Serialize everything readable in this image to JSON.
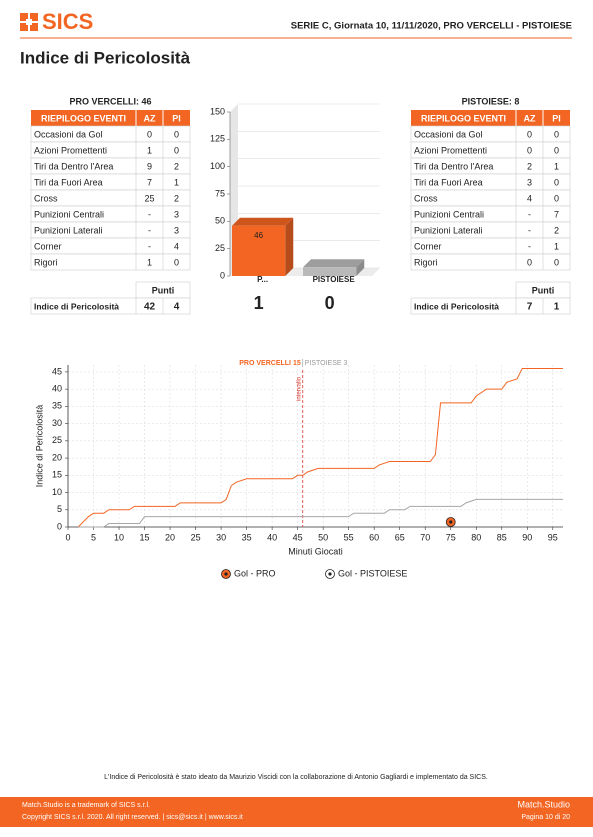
{
  "header": {
    "logo": "SICS",
    "match": "SERIE C, Giornata 10, 11/11/2020, PRO VERCELLI - PISTOIESE"
  },
  "title": "Indice di Pericolosità",
  "tables": [
    {
      "title": "PRO VERCELLI: 46",
      "columns": [
        "RIEPILOGO EVENTI",
        "AZ",
        "PI"
      ],
      "rows": [
        [
          "Occasioni da Gol",
          0,
          0
        ],
        [
          "Azioni Promettenti",
          1,
          0
        ],
        [
          "Tiri da Dentro l'Area",
          9,
          2
        ],
        [
          "Tiri da Fuori Area",
          7,
          1
        ],
        [
          "Cross",
          25,
          2
        ],
        [
          "Punizioni Centrali",
          "-",
          3
        ],
        [
          "Punizioni Laterali",
          "-",
          3
        ],
        [
          "Corner",
          "-",
          4
        ],
        [
          "Rigori",
          1,
          0
        ]
      ],
      "points_header": "Punti",
      "total": [
        "Indice di Pericolosità",
        42,
        4
      ]
    },
    {
      "title": "PISTOIESE: 8",
      "columns": [
        "RIEPILOGO EVENTI",
        "AZ",
        "PI"
      ],
      "rows": [
        [
          "Occasioni da Gol",
          0,
          0
        ],
        [
          "Azioni Promettenti",
          0,
          0
        ],
        [
          "Tiri da Dentro l'Area",
          2,
          1
        ],
        [
          "Tiri da Fuori Area",
          3,
          0
        ],
        [
          "Cross",
          4,
          0
        ],
        [
          "Punizioni Centrali",
          "-",
          7
        ],
        [
          "Punizioni Laterali",
          "-",
          2
        ],
        [
          "Corner",
          "-",
          1
        ],
        [
          "Rigori",
          0,
          0
        ]
      ],
      "points_header": "Punti",
      "total": [
        "Indice di Pericolosità",
        7,
        1
      ]
    }
  ],
  "chart_data": [
    {
      "type": "bar",
      "categories": [
        "P...",
        "PISTOIESE"
      ],
      "values": [
        46,
        8
      ],
      "colors": [
        "#f26522",
        "#b9b9b9"
      ],
      "score": [
        1,
        0
      ],
      "ylim": [
        0,
        150
      ],
      "yticks": [
        0,
        25,
        50,
        75,
        100,
        125,
        150
      ],
      "grid": true
    },
    {
      "type": "line",
      "xlabel": "Minuti Giocati",
      "ylabel": "Indice di Pericolosità",
      "annotations": [
        {
          "text": "PRO VERCELLI 15",
          "color": "#f26522"
        },
        {
          "text": "PISTOIESE 3",
          "color": "#999999"
        }
      ],
      "halftime": {
        "x": 46,
        "label": "intervallo",
        "color": "#d9342b"
      },
      "series": [
        {
          "name": "PRO VERCELLI",
          "color": "#f26522",
          "x": [
            2,
            4,
            5,
            7,
            8,
            12,
            13,
            21,
            22,
            30,
            31,
            32,
            33,
            35,
            44,
            45,
            46,
            47,
            49,
            60,
            61,
            63,
            71,
            72,
            73,
            79,
            80,
            82,
            85,
            86,
            88,
            89,
            97
          ],
          "values": [
            0,
            3,
            4,
            4,
            5,
            5,
            6,
            6,
            7,
            7,
            8,
            12,
            13,
            14,
            14,
            15,
            15,
            16,
            17,
            17,
            18,
            19,
            19,
            21,
            36,
            36,
            38,
            40,
            40,
            42,
            43,
            46,
            46
          ]
        },
        {
          "name": "PISTOIESE",
          "color": "#a6a6a6",
          "x": [
            2,
            7,
            8,
            14,
            15,
            55,
            56,
            62,
            63,
            66,
            67,
            77,
            78,
            80,
            97
          ],
          "values": [
            0,
            0,
            1,
            1,
            3,
            3,
            4,
            4,
            5,
            5,
            6,
            6,
            7,
            8,
            8
          ]
        }
      ],
      "goals": {
        "x": [
          75
        ],
        "values": [
          0
        ],
        "color": "#f26522"
      },
      "legend": [
        {
          "label": "Gol - PRO",
          "color": "#f26522"
        },
        {
          "label": "Gol - PISTOIESE",
          "color": "#ffffff"
        }
      ],
      "xlim": [
        0,
        97
      ],
      "xticks": [
        0,
        5,
        10,
        15,
        20,
        25,
        30,
        35,
        40,
        45,
        50,
        55,
        60,
        65,
        70,
        75,
        80,
        85,
        90,
        95
      ],
      "ylim": [
        0,
        47
      ],
      "yticks": [
        0,
        5,
        10,
        15,
        20,
        25,
        30,
        35,
        40,
        45
      ],
      "grid": true
    }
  ],
  "footer": {
    "note": "L'Indice di Pericolosità è stato ideato da Maurizio Viscidi con la collaborazione di Antonio Gagliardi e implementato da SICS.",
    "left": [
      "Match.Studio is a trademark of SICS s.r.l.",
      "Copyright SICS s.r.l. 2020. All right reserved. | sics@sics.it | www.sics.it"
    ],
    "right": [
      "Match.Studio",
      "Pagina 10 di 20"
    ]
  }
}
